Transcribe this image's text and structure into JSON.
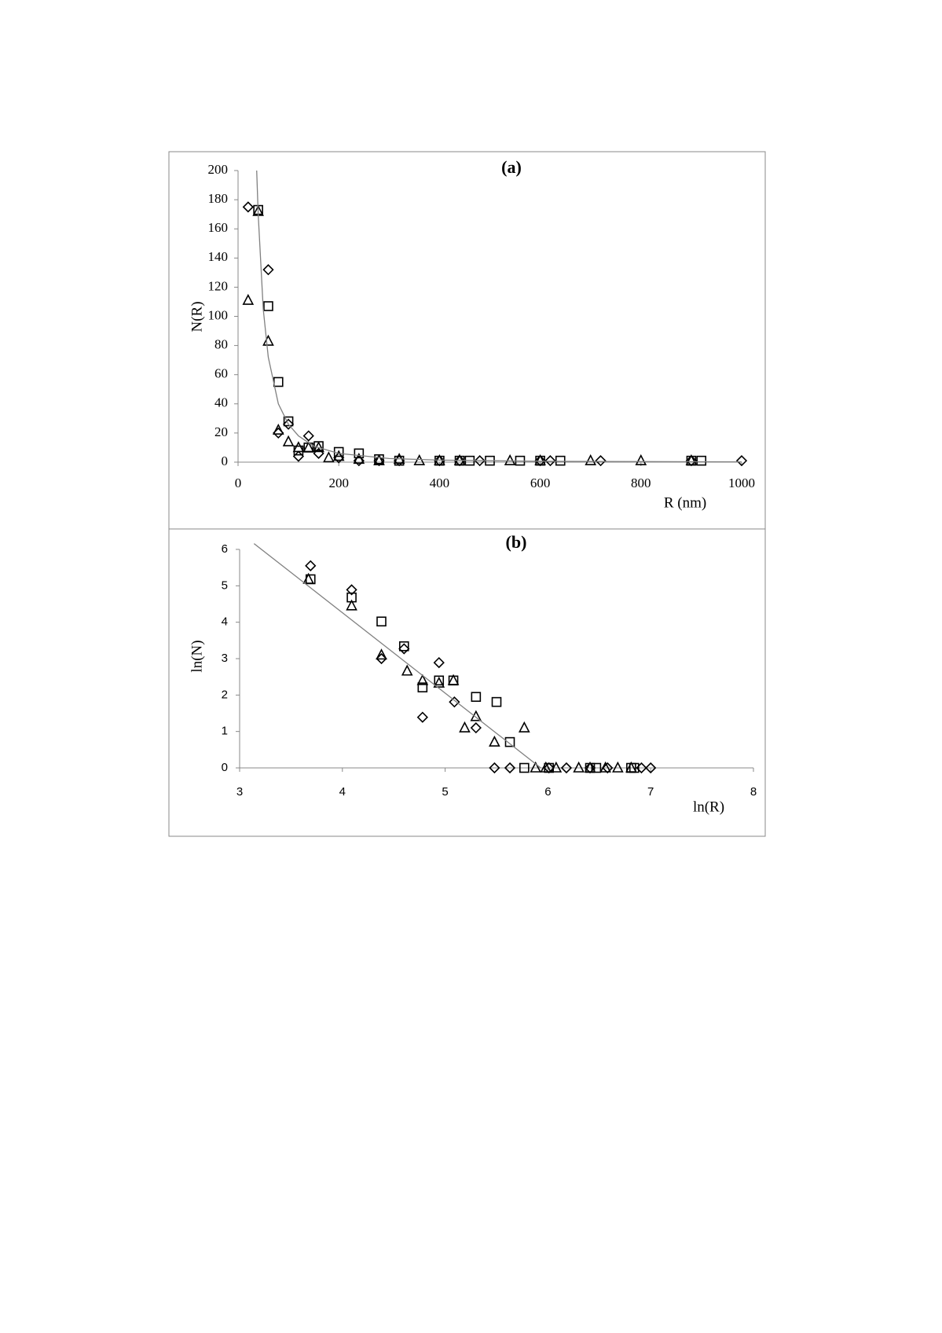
{
  "chart_data": [
    {
      "type": "scatter",
      "title": "(a)",
      "x_label": "R (nm)",
      "y_label": "N(R)",
      "xlim": [
        0,
        1000
      ],
      "ylim": [
        0,
        200
      ],
      "xticks": [
        0,
        200,
        400,
        600,
        800,
        1000
      ],
      "yticks": [
        0,
        20,
        40,
        60,
        80,
        100,
        120,
        140,
        160,
        180,
        200
      ],
      "series": [
        {
          "marker": "diamond",
          "color": "#000000",
          "x": [
            20,
            60,
            80,
            100,
            120,
            140,
            160,
            200,
            240,
            280,
            320,
            400,
            440,
            480,
            600,
            620,
            720,
            900,
            1000
          ],
          "values": [
            175,
            132,
            20,
            26,
            4,
            18,
            6,
            3,
            1,
            1,
            1,
            1,
            1,
            1,
            1,
            1,
            1,
            1,
            1
          ]
        },
        {
          "marker": "square",
          "color": "#000000",
          "x": [
            40,
            60,
            80,
            100,
            120,
            140,
            160,
            200,
            240,
            280,
            320,
            400,
            440,
            460,
            500,
            560,
            600,
            640,
            900,
            920
          ],
          "values": [
            173,
            107,
            55,
            28,
            8,
            10,
            11,
            7,
            6,
            2,
            1,
            1,
            1,
            1,
            1,
            1,
            1,
            1,
            1,
            1
          ]
        },
        {
          "marker": "triangle",
          "color": "#000000",
          "x": [
            20,
            40,
            60,
            80,
            100,
            120,
            140,
            160,
            180,
            200,
            240,
            280,
            320,
            360,
            400,
            440,
            540,
            600,
            700,
            800,
            900
          ],
          "values": [
            111,
            172,
            83,
            22,
            14,
            10,
            10,
            10,
            3,
            4,
            2,
            1,
            2,
            1,
            1,
            1,
            1,
            1,
            1,
            1,
            1
          ]
        },
        {
          "marker": "line",
          "color": "#808080",
          "x": [
            37,
            40,
            50,
            60,
            80,
            100,
            120,
            150,
            200,
            300,
            400,
            600,
            800,
            1000
          ],
          "values": [
            200,
            170,
            105,
            72,
            40,
            26,
            18,
            11,
            6,
            2.5,
            1.4,
            0.6,
            0.4,
            0.2
          ]
        }
      ]
    },
    {
      "type": "scatter",
      "title": "(b)",
      "x_label": "ln(R)",
      "y_label": "ln(N)",
      "xlim": [
        3,
        8
      ],
      "ylim": [
        0,
        6
      ],
      "xticks": [
        3,
        4,
        5,
        6,
        7,
        8
      ],
      "yticks": [
        0,
        1,
        2,
        3,
        4,
        5,
        6
      ],
      "series": [
        {
          "marker": "diamond",
          "color": "#000000",
          "x": [
            3.69,
            4.09,
            4.38,
            4.6,
            4.78,
            4.94,
            5.09,
            5.3,
            5.48,
            5.63,
            6.01,
            6.18,
            6.41,
            6.58,
            6.91,
            7.0
          ],
          "values": [
            5.55,
            4.89,
            3.0,
            3.27,
            1.39,
            2.89,
            1.81,
            1.1,
            0,
            0,
            0,
            0,
            0,
            0,
            0,
            0
          ]
        },
        {
          "marker": "square",
          "color": "#000000",
          "x": [
            3.69,
            4.09,
            4.38,
            4.6,
            4.78,
            4.94,
            5.08,
            5.3,
            5.5,
            5.63,
            5.77,
            6.01,
            6.41,
            6.47,
            6.81,
            6.84
          ],
          "values": [
            5.18,
            4.68,
            4.02,
            3.34,
            2.21,
            2.4,
            2.4,
            1.95,
            1.81,
            0.71,
            0,
            0,
            0,
            0,
            0,
            0
          ]
        },
        {
          "marker": "triangle",
          "color": "#000000",
          "x": [
            3.67,
            4.09,
            4.38,
            4.63,
            4.78,
            4.94,
            5.08,
            5.19,
            5.3,
            5.48,
            5.77,
            5.88,
            5.98,
            6.08,
            6.3,
            6.41,
            6.56,
            6.68,
            6.81
          ],
          "values": [
            5.18,
            4.45,
            3.1,
            2.66,
            2.4,
            2.33,
            2.4,
            1.1,
            1.41,
            0.71,
            1.1,
            0,
            0,
            0,
            0,
            0,
            0,
            0,
            0
          ]
        },
        {
          "marker": "line",
          "color": "#808080",
          "x": [
            3.14,
            5.93
          ],
          "values": [
            6.16,
            0
          ]
        }
      ]
    }
  ]
}
